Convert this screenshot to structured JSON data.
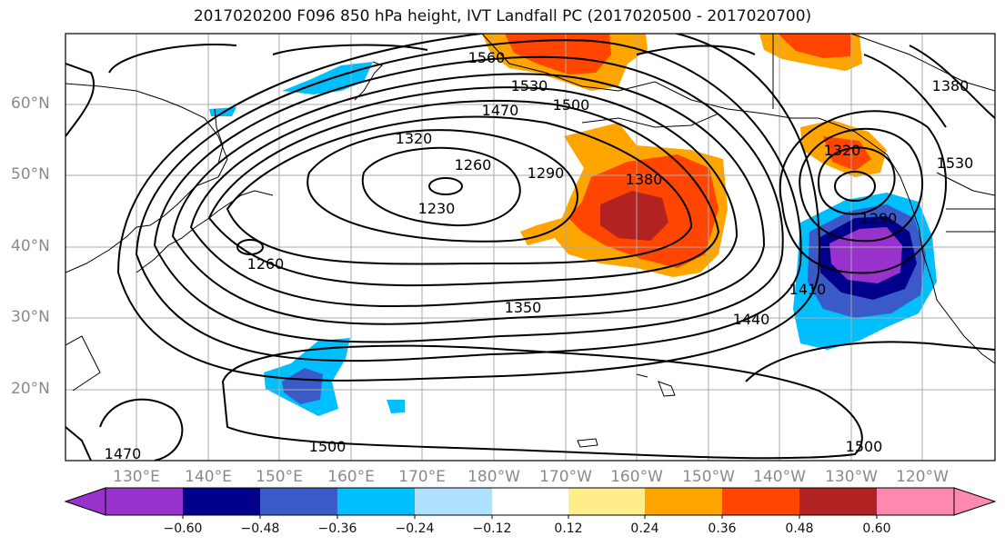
{
  "title": "2017020200 F096 850 hPa height, IVT Landfall PC (2017020500 - 2017020700)",
  "lat_labels": [
    "60°N",
    "50°N",
    "40°N",
    "30°N",
    "20°N"
  ],
  "lon_labels": [
    "130°E",
    "140°E",
    "150°E",
    "160°E",
    "170°E",
    "180°W",
    "170°W",
    "160°W",
    "150°W",
    "140°W",
    "130°W",
    "120°W"
  ],
  "contour_labels": [
    "1560",
    "1530",
    "1500",
    "1470",
    "1320",
    "1260",
    "1290",
    "1380",
    "1230",
    "1260",
    "1350",
    "1410",
    "1440",
    "1290",
    "1320",
    "1380",
    "1500",
    "1500",
    "1470",
    "1530"
  ],
  "colorbar": {
    "labels": [
      "−0.60",
      "−0.48",
      "−0.36",
      "−0.24",
      "−0.12",
      "0.12",
      "0.24",
      "0.36",
      "0.48",
      "0.60"
    ],
    "colors": [
      "#9932cc",
      "#00008b",
      "#3a5bc7",
      "#00bfff",
      "#b0e2ff",
      "#ffffff",
      "#ffec8b",
      "#ffa500",
      "#ff4500",
      "#b22222",
      "#ff88b0"
    ]
  },
  "colors": {
    "negative_strong": "#9932cc",
    "negative_dark": "#00008b",
    "positive_strong": "#b22222"
  }
}
